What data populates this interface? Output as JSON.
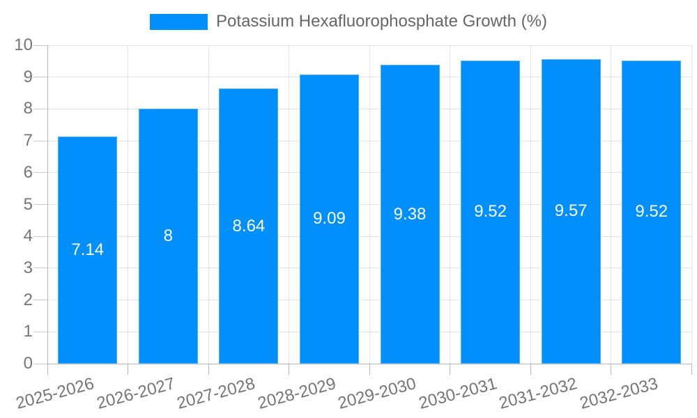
{
  "colors": {
    "bar": "#008ffb",
    "grid": "#e3e3e3",
    "axis": "#b5b5b5",
    "tick": "#c9c9c9",
    "axis_text": "#757575",
    "legend_text": "#666666",
    "value_text": "#ffffff",
    "background": "#ffffff"
  },
  "chart_data": {
    "type": "bar",
    "title": "Potassium Hexafluorophosphate Growth (%)",
    "categories": [
      "2025-2026",
      "2026-2027",
      "2027-2028",
      "2028-2029",
      "2029-2030",
      "2030-2031",
      "2031-2032",
      "2032-2033"
    ],
    "series": [
      {
        "name": "Potassium Hexafluorophosphate Growth (%)",
        "values": [
          7.14,
          8,
          8.64,
          9.09,
          9.38,
          9.52,
          9.57,
          9.52
        ]
      }
    ],
    "data_labels": [
      "7.14",
      "8",
      "8.64",
      "9.09",
      "9.38",
      "9.52",
      "9.57",
      "9.52"
    ],
    "xlabel": "",
    "ylabel": "",
    "ylim": [
      0,
      10
    ],
    "yticks": [
      0,
      1,
      2,
      3,
      4,
      5,
      6,
      7,
      8,
      9,
      10
    ],
    "grid": true,
    "legend_position": "top",
    "x_label_rotation_deg": -15
  }
}
